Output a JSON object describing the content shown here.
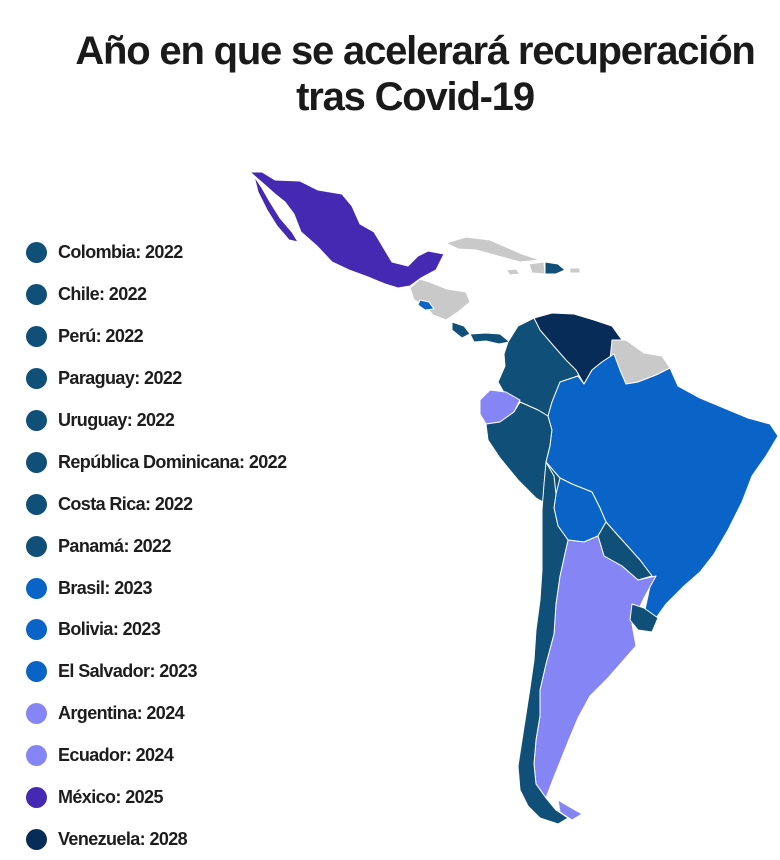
{
  "title": {
    "line1": "Año en que se acelerará recuperación",
    "line2": "tras Covid-19"
  },
  "colors": {
    "y2022": "#0f4f78",
    "y2023": "#0a64c8",
    "y2024": "#8585f5",
    "y2025": "#4429b3",
    "y2028": "#072c57",
    "no_data": "#c9c9c9",
    "border": "#ffffff"
  },
  "legend": [
    {
      "label": "Colombia: 2022",
      "color": "#0f4f78"
    },
    {
      "label": "Chile: 2022",
      "color": "#0f4f78"
    },
    {
      "label": "Perú: 2022",
      "color": "#0f4f78"
    },
    {
      "label": "Paraguay: 2022",
      "color": "#0f4f78"
    },
    {
      "label": "Uruguay: 2022",
      "color": "#0f4f78"
    },
    {
      "label": "República Dominicana: 2022",
      "color": "#0f4f78"
    },
    {
      "label": "Costa Rica: 2022",
      "color": "#0f4f78"
    },
    {
      "label": "Panamá: 2022",
      "color": "#0f4f78"
    },
    {
      "label": "Brasil: 2023",
      "color": "#0a64c8"
    },
    {
      "label": "Bolivia: 2023",
      "color": "#0a64c8"
    },
    {
      "label": "El Salvador: 2023",
      "color": "#0a64c8"
    },
    {
      "label": "Argentina: 2024",
      "color": "#8585f5"
    },
    {
      "label": "Ecuador: 2024",
      "color": "#8585f5"
    },
    {
      "label": "México: 2025",
      "color": "#4429b3"
    },
    {
      "label": "Venezuela: 2028",
      "color": "#072c57"
    }
  ]
}
